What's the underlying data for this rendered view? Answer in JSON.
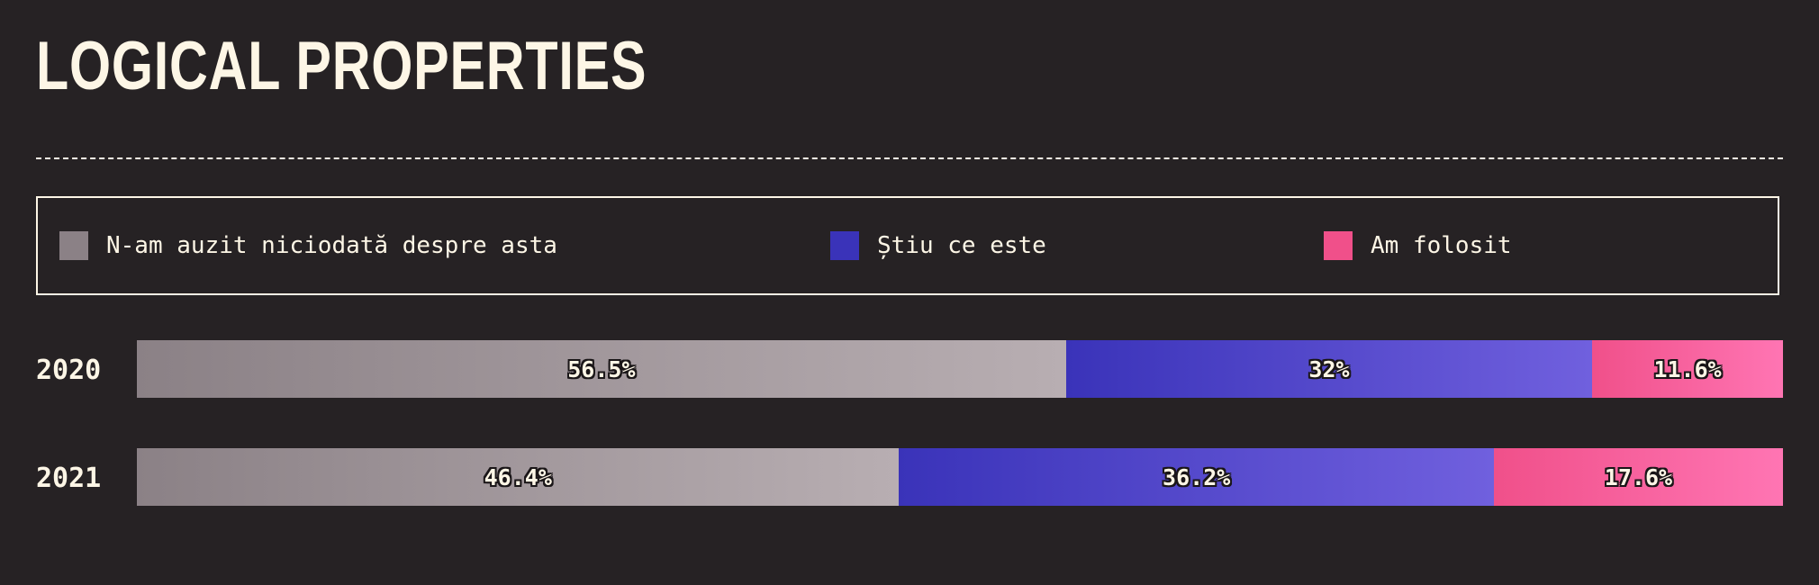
{
  "title": "LOGICAL PROPERTIES",
  "chart_data": {
    "type": "bar",
    "orientation": "horizontal",
    "stacked": true,
    "title": "LOGICAL PROPERTIES",
    "categories": [
      "2020",
      "2021"
    ],
    "series": [
      {
        "name": "N-am auzit niciodată despre asta",
        "color": "#8b8186",
        "values": [
          56.5,
          46.4
        ],
        "labels": [
          "56.5%",
          "46.4%"
        ]
      },
      {
        "name": "Știu ce este",
        "color": "#3a33b9",
        "values": [
          32,
          36.2
        ],
        "labels": [
          "32%",
          "36.2%"
        ]
      },
      {
        "name": "Am folosit",
        "color": "#f0508a",
        "values": [
          11.6,
          17.6
        ],
        "labels": [
          "11.6%",
          "17.6%"
        ]
      }
    ],
    "xlim": [
      0,
      100
    ],
    "legend_position": "top",
    "grid": false
  }
}
